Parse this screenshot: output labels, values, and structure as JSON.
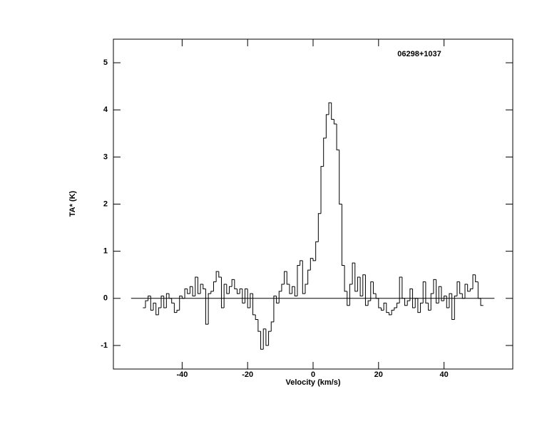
{
  "chart_data": {
    "type": "step",
    "title": "06298+1037",
    "x_label": "Velocity (km/s)",
    "y_label": "TA* (K)",
    "color": "#000000",
    "xlim": [
      -61,
      61
    ],
    "ylim": [
      -1.5,
      5.5
    ],
    "xticks": [
      -40,
      -20,
      0,
      20,
      40
    ],
    "yticks": [
      -1,
      0,
      1,
      2,
      3,
      4,
      5
    ],
    "zero_line": {
      "x": [
        -55.6,
        55.4
      ],
      "y": 0
    },
    "x": [
      -51.6,
      -50.8,
      -50.0,
      -49.2,
      -48.4,
      -47.6,
      -46.8,
      -46.0,
      -45.2,
      -44.4,
      -43.6,
      -42.8,
      -42.0,
      -41.2,
      -40.4,
      -39.6,
      -38.8,
      -38.0,
      -37.2,
      -36.4,
      -35.6,
      -34.8,
      -34.0,
      -33.2,
      -32.4,
      -31.6,
      -30.8,
      -30.0,
      -29.2,
      -28.4,
      -27.6,
      -26.8,
      -26.0,
      -25.2,
      -24.4,
      -23.6,
      -22.8,
      -22.0,
      -21.2,
      -20.4,
      -19.6,
      -18.8,
      -18.0,
      -17.2,
      -16.4,
      -15.6,
      -14.8,
      -14.0,
      -13.2,
      -12.4,
      -11.6,
      -10.8,
      -10.0,
      -9.2,
      -8.4,
      -7.6,
      -6.8,
      -6.0,
      -5.2,
      -4.4,
      -3.6,
      -2.8,
      -2.0,
      -1.2,
      -0.4,
      0.4,
      1.2,
      2.0,
      2.8,
      3.6,
      4.4,
      5.2,
      6.0,
      6.8,
      7.6,
      8.4,
      9.2,
      10.0,
      10.8,
      11.6,
      12.4,
      13.2,
      14.0,
      14.8,
      15.6,
      16.4,
      17.2,
      18.0,
      18.8,
      19.6,
      20.4,
      21.2,
      22.0,
      22.8,
      23.6,
      24.4,
      25.2,
      26.0,
      26.8,
      27.6,
      28.4,
      29.2,
      30.0,
      30.8,
      31.6,
      32.4,
      33.2,
      34.0,
      34.8,
      35.6,
      36.4,
      37.2,
      38.0,
      38.8,
      39.6,
      40.4,
      41.2,
      42.0,
      42.8,
      43.6,
      44.4,
      45.2,
      46.0,
      46.8,
      47.6,
      48.4,
      49.2,
      50.0,
      50.8,
      51.6
    ],
    "values": [
      -0.2,
      -0.05,
      0.05,
      -0.25,
      -0.1,
      -0.35,
      -0.2,
      0.05,
      -0.2,
      0.1,
      0.0,
      -0.1,
      -0.3,
      -0.25,
      0.05,
      0.0,
      0.2,
      0.1,
      0.25,
      0.05,
      0.45,
      0.1,
      0.3,
      0.2,
      -0.55,
      0.1,
      0.15,
      0.35,
      0.57,
      0.45,
      -0.2,
      0.3,
      0.1,
      0.25,
      0.4,
      0.2,
      0.1,
      0.2,
      -0.1,
      0.2,
      -0.2,
      0.1,
      -0.35,
      -0.45,
      -0.7,
      -1.08,
      -0.65,
      -1.0,
      -0.7,
      -0.5,
      0.05,
      -0.1,
      0.15,
      0.3,
      0.57,
      0.3,
      0.1,
      0.25,
      0.05,
      0.7,
      0.8,
      0.1,
      0.3,
      0.6,
      0.85,
      0.8,
      1.2,
      1.8,
      2.8,
      3.4,
      3.9,
      4.15,
      3.8,
      3.7,
      3.15,
      2.0,
      0.7,
      0.15,
      -0.15,
      0.3,
      0.75,
      0.15,
      0.45,
      0.05,
      0.5,
      -0.15,
      -0.05,
      0.35,
      0.1,
      0.0,
      -0.2,
      -0.25,
      -0.1,
      -0.3,
      -0.35,
      -0.25,
      -0.2,
      -0.1,
      0.45,
      0.0,
      -0.15,
      -0.05,
      0.2,
      -0.2,
      0.0,
      -0.3,
      -0.1,
      0.35,
      -0.1,
      -0.25,
      0.1,
      0.4,
      -0.1,
      0.25,
      -0.05,
      0.05,
      -0.2,
      0.1,
      -0.45,
      0.05,
      0.35,
      0.1,
      0.0,
      0.3,
      0.15,
      0.2,
      0.5,
      0.35,
      0.0,
      -0.15
    ]
  }
}
